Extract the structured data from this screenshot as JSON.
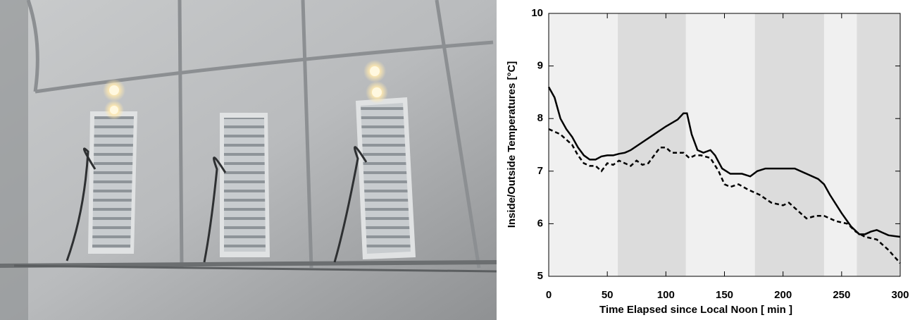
{
  "chart_data": {
    "type": "line",
    "x_label": "Time Elapsed since Local Noon [ min ]",
    "y_label": "Inside/Outside Temperatures [°C]",
    "xlim": [
      0,
      300
    ],
    "xticks": [
      0,
      50,
      100,
      150,
      200,
      250,
      300
    ],
    "ylim": [
      5,
      10
    ],
    "yticks": [
      5,
      6,
      7,
      8,
      9,
      10
    ],
    "background_color": "#f0f0f0",
    "shaded_bands": [
      [
        59,
        117
      ],
      [
        176,
        235
      ],
      [
        263,
        300
      ]
    ],
    "band_color": "#dcdcdc",
    "series": [
      {
        "color": "#000000",
        "dash": "solid",
        "x": [
          0,
          5,
          10,
          15,
          20,
          25,
          30,
          35,
          40,
          45,
          50,
          55,
          60,
          65,
          70,
          80,
          90,
          100,
          110,
          115,
          118,
          122,
          127,
          132,
          138,
          142,
          148,
          155,
          165,
          172,
          178,
          185,
          210,
          220,
          230,
          235,
          240,
          250,
          258,
          265,
          270,
          275,
          280,
          285,
          290,
          300
        ],
        "values": [
          8.6,
          8.4,
          8.0,
          7.8,
          7.65,
          7.45,
          7.3,
          7.22,
          7.22,
          7.28,
          7.3,
          7.3,
          7.33,
          7.35,
          7.4,
          7.55,
          7.7,
          7.85,
          7.98,
          8.1,
          8.1,
          7.7,
          7.4,
          7.35,
          7.4,
          7.3,
          7.05,
          6.95,
          6.95,
          6.9,
          7.0,
          7.05,
          7.05,
          6.95,
          6.85,
          6.75,
          6.55,
          6.2,
          5.95,
          5.8,
          5.8,
          5.85,
          5.88,
          5.83,
          5.78,
          5.75
        ]
      },
      {
        "color": "#000000",
        "dash": "dashed",
        "x": [
          0,
          5,
          10,
          15,
          20,
          25,
          30,
          35,
          40,
          45,
          50,
          55,
          60,
          65,
          70,
          75,
          80,
          85,
          90,
          95,
          100,
          105,
          115,
          120,
          125,
          130,
          138,
          145,
          150,
          155,
          162,
          170,
          180,
          190,
          200,
          205,
          210,
          220,
          228,
          235,
          240,
          245,
          255,
          262,
          270,
          280,
          290,
          300
        ],
        "values": [
          7.8,
          7.75,
          7.7,
          7.6,
          7.5,
          7.3,
          7.15,
          7.1,
          7.1,
          7.0,
          7.15,
          7.12,
          7.2,
          7.15,
          7.1,
          7.2,
          7.12,
          7.15,
          7.3,
          7.45,
          7.45,
          7.35,
          7.35,
          7.25,
          7.3,
          7.3,
          7.25,
          7.0,
          6.75,
          6.7,
          6.75,
          6.65,
          6.55,
          6.4,
          6.35,
          6.4,
          6.3,
          6.1,
          6.15,
          6.15,
          6.1,
          6.05,
          6.0,
          5.85,
          5.75,
          5.7,
          5.5,
          5.25
        ]
      }
    ]
  }
}
